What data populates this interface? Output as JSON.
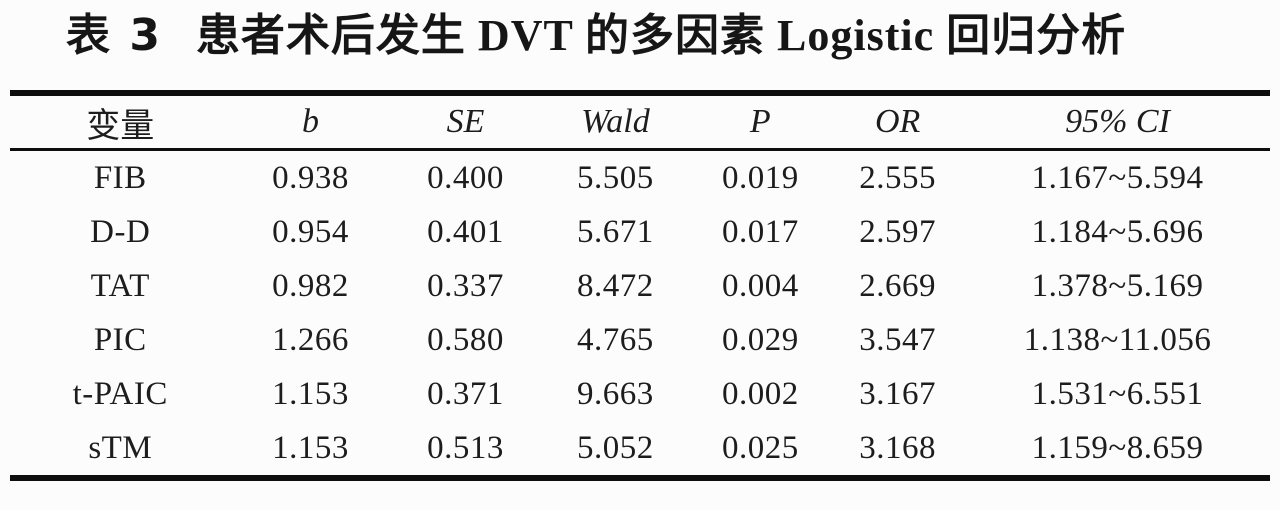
{
  "caption": {
    "label": "表 3",
    "title": "患者术后发生 DVT 的多因素 Logistic 回归分析"
  },
  "table": {
    "columns": [
      "变量",
      "b",
      "SE",
      "Wald",
      "P",
      "OR",
      "95% CI"
    ],
    "rows": [
      [
        "FIB",
        "0.938",
        "0.400",
        "5.505",
        "0.019",
        "2.555",
        "1.167~5.594"
      ],
      [
        "D-D",
        "0.954",
        "0.401",
        "5.671",
        "0.017",
        "2.597",
        "1.184~5.696"
      ],
      [
        "TAT",
        "0.982",
        "0.337",
        "8.472",
        "0.004",
        "2.669",
        "1.378~5.169"
      ],
      [
        "PIC",
        "1.266",
        "0.580",
        "4.765",
        "0.029",
        "3.547",
        "1.138~11.056"
      ],
      [
        "t-PAIC",
        "1.153",
        "0.371",
        "9.663",
        "0.002",
        "3.167",
        "1.531~6.551"
      ],
      [
        "sTM",
        "1.153",
        "0.513",
        "5.052",
        "0.025",
        "3.168",
        "1.159~8.659"
      ]
    ]
  },
  "colors": {
    "text": "#1d1d1d",
    "rule": "#0e0e0e",
    "background": "#fcfcfc"
  }
}
